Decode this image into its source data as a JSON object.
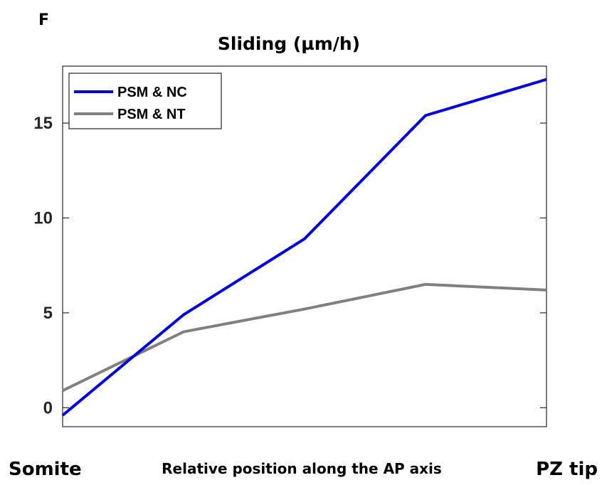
{
  "panel_letter": "F",
  "chart_data": {
    "type": "line",
    "title": "Sliding (µm/h)",
    "xlabel": "Relative position along the AP axis",
    "x_start_label": "Somite",
    "x_end_label": "PZ tip",
    "x": [
      0,
      1,
      2,
      3,
      4
    ],
    "xlim": [
      0,
      4
    ],
    "ylim": [
      -1,
      18
    ],
    "yticks": [
      0,
      5,
      10,
      15
    ],
    "grid": false,
    "legend_position": "top-left",
    "series": [
      {
        "name": "PSM & NC",
        "color": "#0000dd",
        "values": [
          -0.4,
          4.9,
          8.9,
          15.4,
          17.3
        ]
      },
      {
        "name": "PSM & NT",
        "color": "#808080",
        "values": [
          0.9,
          4.0,
          5.2,
          6.5,
          6.2
        ]
      }
    ]
  }
}
